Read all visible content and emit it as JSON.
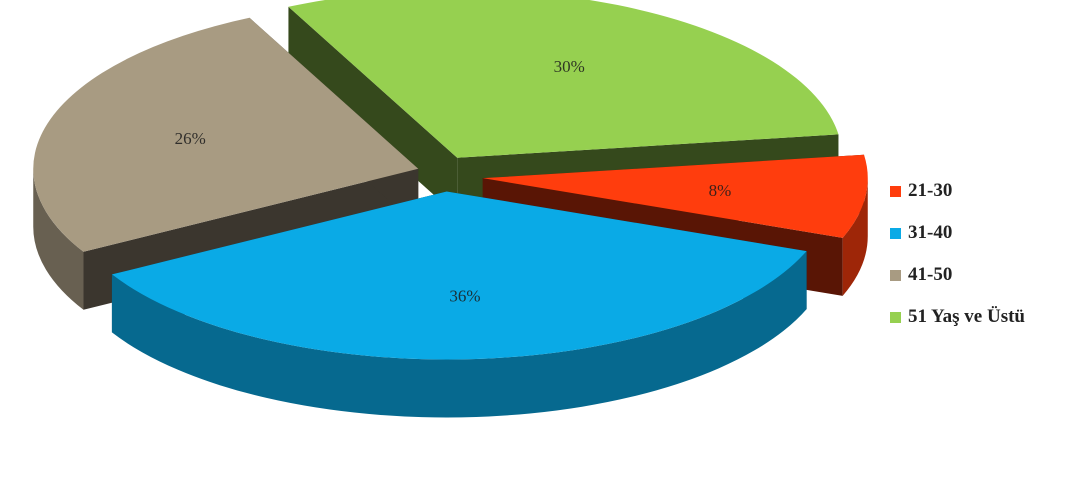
{
  "chart_data": {
    "type": "pie",
    "title": "",
    "categories": [
      "21-30",
      "31-40",
      "41-50",
      "51 Yaş ve Üstü"
    ],
    "values": [
      8,
      36,
      26,
      30
    ],
    "labels": [
      "8%",
      "36%",
      "26%",
      "30%"
    ],
    "colors": [
      "#ff3d0d",
      "#0aaae6",
      "#a89b82",
      "#96d050"
    ],
    "exploded": true,
    "three_d": true,
    "legend_position": "right"
  }
}
